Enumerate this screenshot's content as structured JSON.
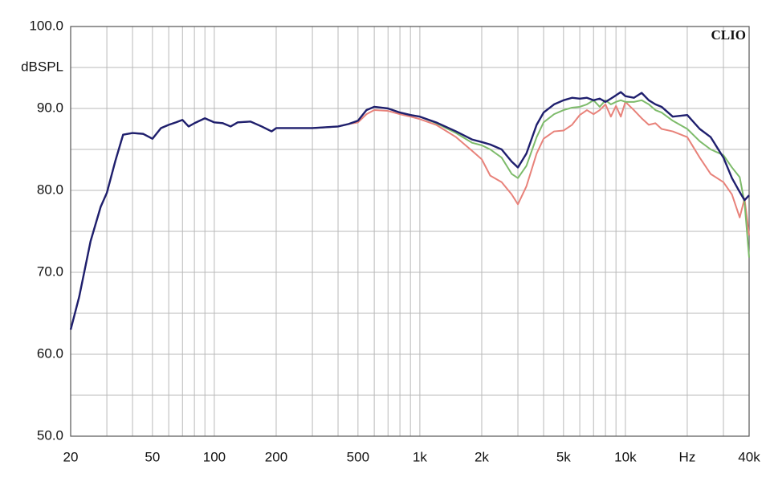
{
  "chart_data": {
    "type": "line",
    "ylabel": "dBSPL",
    "watermark": "CLIO",
    "xscale": "log",
    "grid": true,
    "x": [
      20,
      22,
      25,
      28,
      30,
      33,
      36,
      40,
      45,
      50,
      55,
      60,
      65,
      70,
      75,
      80,
      90,
      100,
      110,
      120,
      130,
      150,
      170,
      190,
      200,
      250,
      300,
      400,
      450,
      500,
      550,
      600,
      700,
      800,
      900,
      1000,
      1200,
      1500,
      1800,
      2000,
      2200,
      2500,
      2800,
      3000,
      3300,
      3700,
      4000,
      4500,
      5000,
      5500,
      6000,
      6500,
      7000,
      7500,
      8000,
      8500,
      9000,
      9500,
      10000,
      11000,
      12000,
      13000,
      14000,
      15000,
      17000,
      20000,
      23000,
      26000,
      30000,
      33000,
      36000,
      38000,
      40000
    ],
    "series": [
      {
        "color": "#e8827a",
        "values": [
          63,
          67,
          73.8,
          78,
          79.7,
          83.6,
          86.8,
          87,
          86.9,
          86.3,
          87.6,
          88,
          88.3,
          88.6,
          87.8,
          88.2,
          88.8,
          88.3,
          88.2,
          87.8,
          88.3,
          88.4,
          87.8,
          87.2,
          87.6,
          87.6,
          87.6,
          87.8,
          88.1,
          88.3,
          89.3,
          89.8,
          89.7,
          89.3,
          89,
          88.7,
          88,
          86.5,
          84.8,
          83.8,
          81.8,
          81,
          79.5,
          78.3,
          80.5,
          84.5,
          86.3,
          87.2,
          87.3,
          88,
          89.2,
          89.8,
          89.3,
          89.8,
          90.5,
          89,
          90.3,
          89,
          90.8,
          89.8,
          88.8,
          88,
          88.2,
          87.5,
          87.2,
          86.5,
          84,
          82,
          81,
          79.5,
          76.7,
          79,
          74.5
        ]
      },
      {
        "color": "#7dbb6a",
        "values": [
          63,
          67,
          73.8,
          78,
          79.7,
          83.6,
          86.8,
          87,
          86.9,
          86.3,
          87.6,
          88,
          88.3,
          88.6,
          87.8,
          88.2,
          88.8,
          88.3,
          88.2,
          87.8,
          88.3,
          88.4,
          87.8,
          87.2,
          87.6,
          87.6,
          87.6,
          87.8,
          88.1,
          88.5,
          89.8,
          90.2,
          90,
          89.5,
          89.2,
          89,
          88.2,
          87,
          85.8,
          85.5,
          85,
          84,
          82,
          81.5,
          83,
          86.5,
          88.3,
          89.3,
          89.8,
          90.1,
          90.2,
          90.5,
          91,
          90.2,
          91,
          90.5,
          90.8,
          91,
          90.8,
          90.8,
          91,
          90.5,
          89.8,
          89.5,
          88.5,
          87.5,
          86,
          85,
          84.3,
          82.8,
          81.6,
          78.5,
          71.8
        ]
      },
      {
        "color": "#1f1f6e",
        "values": [
          63,
          67,
          73.8,
          78,
          79.7,
          83.6,
          86.8,
          87,
          86.9,
          86.3,
          87.6,
          88,
          88.3,
          88.6,
          87.8,
          88.2,
          88.8,
          88.3,
          88.2,
          87.8,
          88.3,
          88.4,
          87.8,
          87.2,
          87.6,
          87.6,
          87.6,
          87.8,
          88.1,
          88.5,
          89.8,
          90.2,
          90,
          89.5,
          89.2,
          89,
          88.3,
          87.2,
          86.2,
          85.9,
          85.6,
          85,
          83.5,
          82.8,
          84.5,
          88,
          89.5,
          90.5,
          91,
          91.3,
          91.2,
          91.3,
          91,
          91.2,
          90.8,
          91.2,
          91.6,
          92,
          91.5,
          91.3,
          91.9,
          91,
          90.5,
          90.2,
          89,
          89.2,
          87.5,
          86.5,
          84,
          81.5,
          79.8,
          78.8,
          79.4
        ]
      }
    ],
    "xlim": [
      20,
      40000
    ],
    "ylim": [
      50,
      100
    ],
    "xticks": [
      20,
      50,
      100,
      200,
      500,
      {
        "value": 1000,
        "label": "1k"
      },
      {
        "value": 2000,
        "label": "2k"
      },
      {
        "value": 5000,
        "label": "5k"
      },
      {
        "value": 10000,
        "label": "10k"
      },
      {
        "value": 20000,
        "label": "Hz"
      },
      {
        "value": 40000,
        "label": "40k"
      }
    ],
    "xminor": [
      30,
      40,
      60,
      70,
      80,
      90,
      300,
      400,
      600,
      700,
      800,
      900,
      3000,
      4000,
      6000,
      7000,
      8000,
      9000,
      30000
    ],
    "yticks": [
      {
        "value": 50,
        "label": "50.0"
      },
      {
        "value": 60,
        "label": "60.0"
      },
      {
        "value": 70,
        "label": "70.0"
      },
      {
        "value": 80,
        "label": "80.0"
      },
      {
        "value": 90,
        "label": "90.0"
      },
      {
        "value": 100,
        "label": "100.0"
      }
    ],
    "yminor": [
      55,
      65,
      75,
      85,
      95
    ]
  }
}
